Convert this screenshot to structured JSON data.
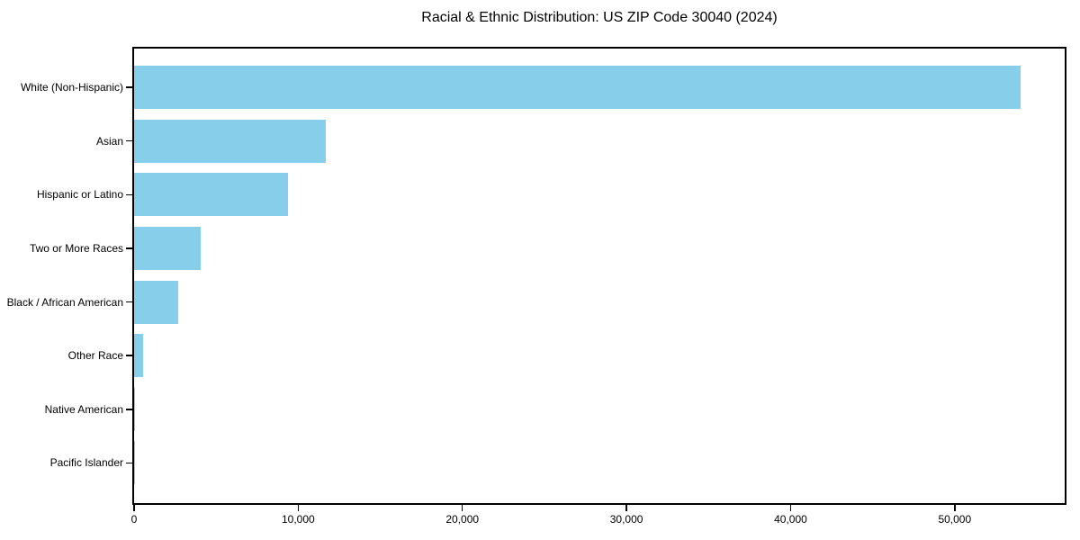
{
  "chart_data": {
    "type": "bar",
    "orientation": "horizontal",
    "title": "Racial & Ethnic Distribution: US ZIP Code 30040 (2024)",
    "categories": [
      "White (Non-Hispanic)",
      "Asian",
      "Hispanic or Latino",
      "Two or More Races",
      "Black / African American",
      "Other Race",
      "Native American",
      "Pacific Islander"
    ],
    "values": [
      54000,
      11700,
      9400,
      4050,
      2700,
      550,
      50,
      20
    ],
    "xlabel": "",
    "ylabel": "",
    "xlim": [
      0,
      56700
    ],
    "xticks": [
      0,
      10000,
      20000,
      30000,
      40000,
      50000
    ],
    "xtick_labels": [
      "0",
      "10,000",
      "20,000",
      "30,000",
      "40,000",
      "50,000"
    ],
    "bar_color": "#87CEEB",
    "axis_color": "#000000",
    "background_color": "#ffffff",
    "grid": false,
    "legend": null
  }
}
